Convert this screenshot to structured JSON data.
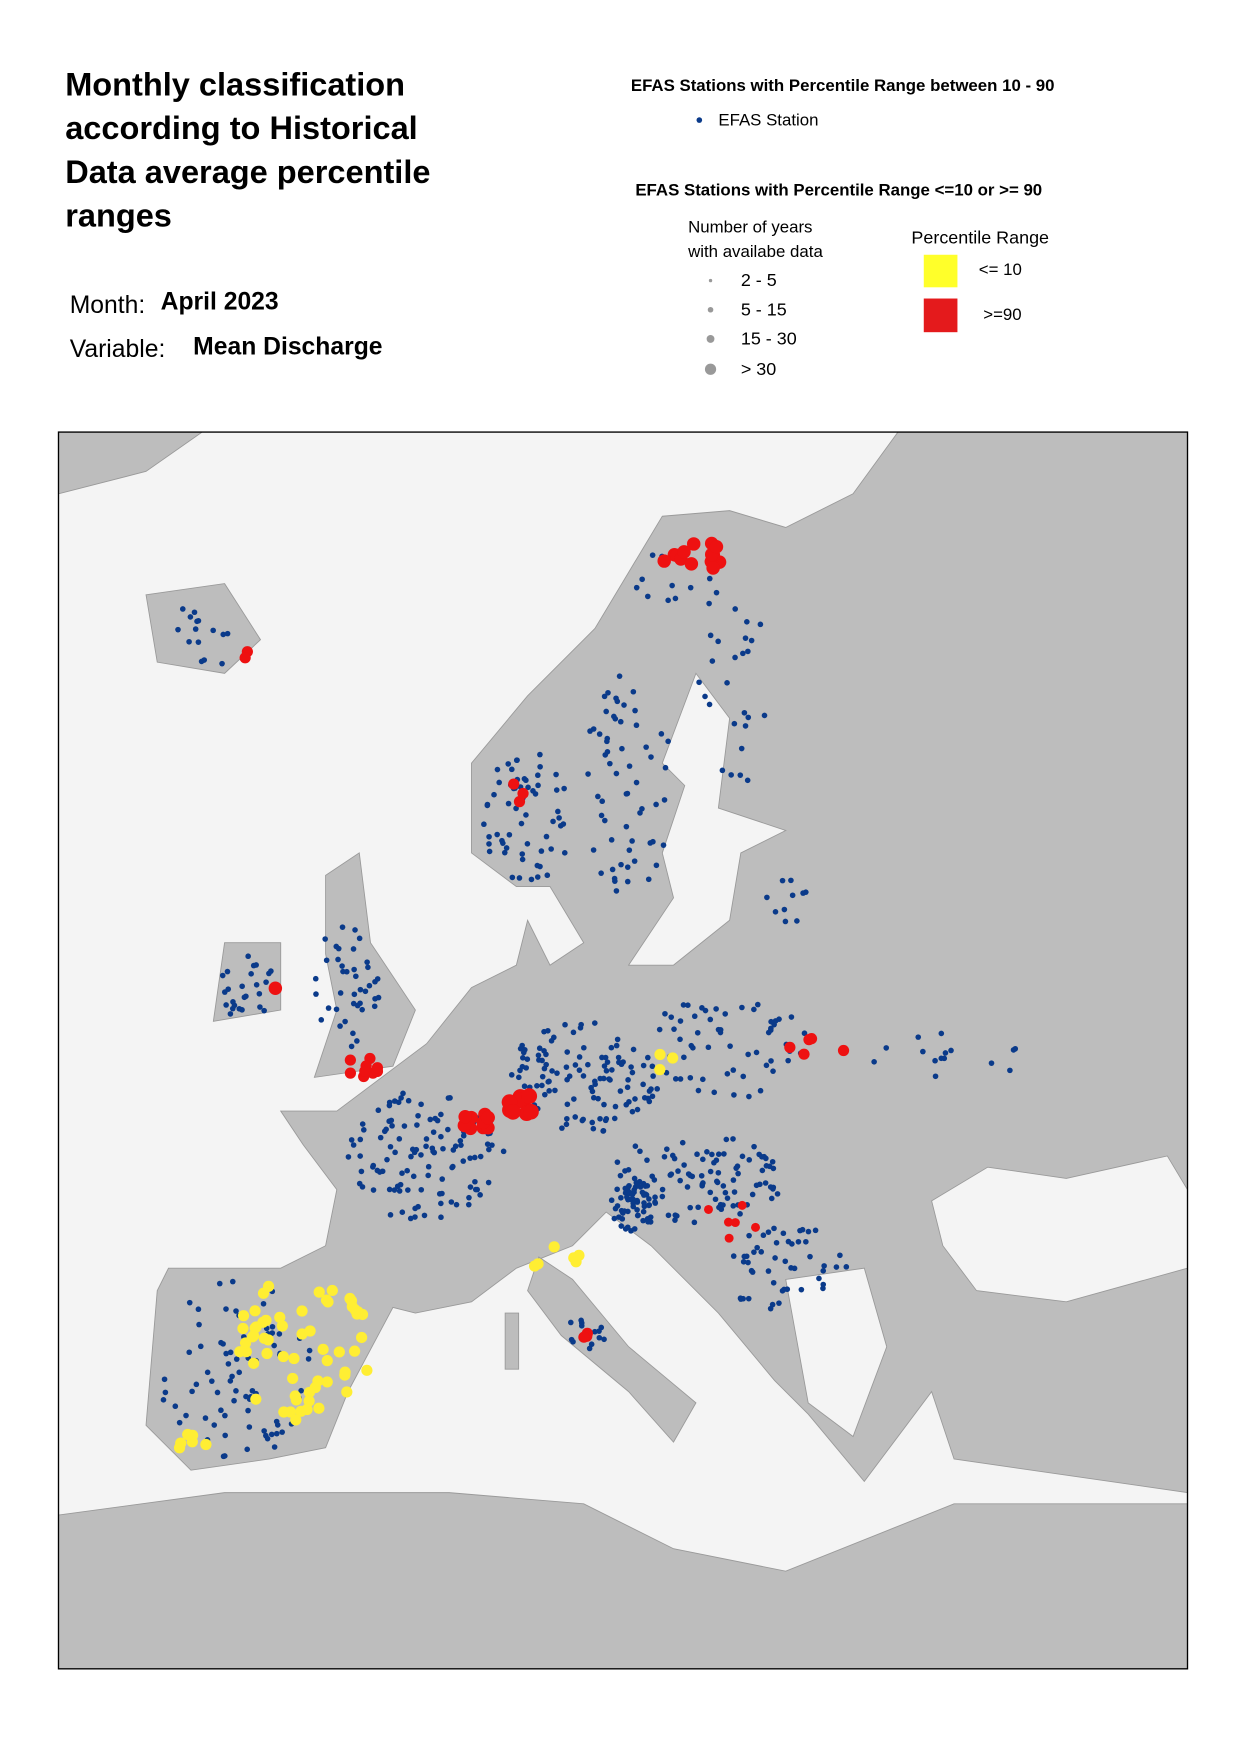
{
  "header": {
    "title_lines": [
      "Monthly classification",
      "according to Historical",
      "Data average percentile",
      "ranges"
    ],
    "month_label": "Month:",
    "month": "April 2023",
    "variable_label": "Variable:",
    "variable": "Mean Discharge"
  },
  "legend": {
    "normal_title": "EFAS Stations with Percentile Range between 10 - 90",
    "normal_item": "EFAS Station",
    "extreme_title": "EFAS Stations with Percentile Range <=10 or >= 90",
    "size_title_lines": [
      "Number of years",
      "with availabe data"
    ],
    "size_items": [
      "2 - 5",
      "5 - 15",
      "15 - 30",
      "> 30"
    ],
    "range_title": "Percentile Range",
    "range_items": [
      "<= 10",
      ">=90"
    ]
  }
}
